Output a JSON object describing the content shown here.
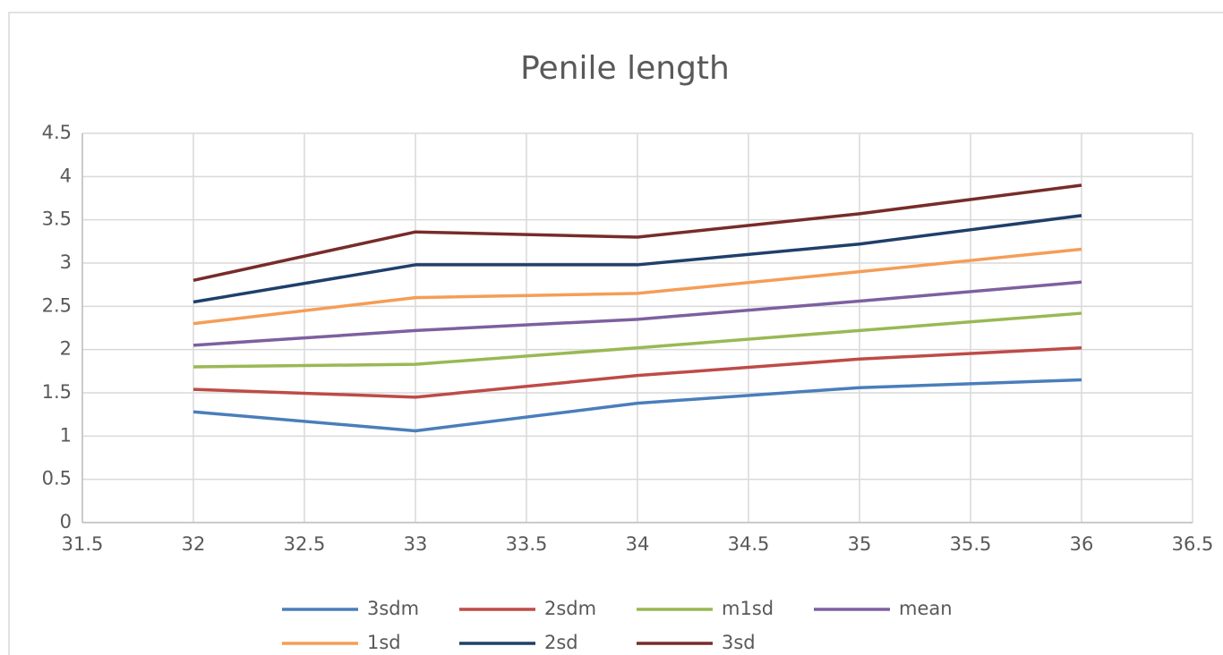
{
  "chart_data": {
    "type": "line",
    "title": "Penile length",
    "x": [
      32,
      33,
      34,
      35,
      36
    ],
    "series": [
      {
        "name": "3sdm",
        "color": "#4a7ebb",
        "values": [
          1.28,
          1.06,
          1.38,
          1.56,
          1.65
        ]
      },
      {
        "name": "2sdm",
        "color": "#be4b48",
        "values": [
          1.54,
          1.45,
          1.7,
          1.89,
          2.02
        ]
      },
      {
        "name": "m1sd",
        "color": "#98b954",
        "values": [
          1.8,
          1.83,
          2.02,
          2.22,
          2.42
        ]
      },
      {
        "name": "mean",
        "color": "#7d60a0",
        "values": [
          2.05,
          2.22,
          2.35,
          2.56,
          2.78
        ]
      },
      {
        "name": "1sd",
        "color": "#f59d56",
        "values": [
          2.3,
          2.6,
          2.65,
          2.9,
          3.16
        ]
      },
      {
        "name": "2sd",
        "color": "#1f3f6b",
        "values": [
          2.55,
          2.98,
          2.98,
          3.22,
          3.55
        ]
      },
      {
        "name": "3sd",
        "color": "#772c2a",
        "values": [
          2.8,
          3.36,
          3.3,
          3.57,
          3.9
        ]
      }
    ],
    "xlim": [
      31.5,
      36.5
    ],
    "xticks": [
      31.5,
      32,
      32.5,
      33,
      33.5,
      34,
      34.5,
      35,
      35.5,
      36,
      36.5
    ],
    "ylim": [
      0,
      4.5
    ],
    "yticks": [
      0,
      0.5,
      1,
      1.5,
      2,
      2.5,
      3,
      3.5,
      4,
      4.5
    ],
    "grid": true,
    "legend": "bottom"
  }
}
